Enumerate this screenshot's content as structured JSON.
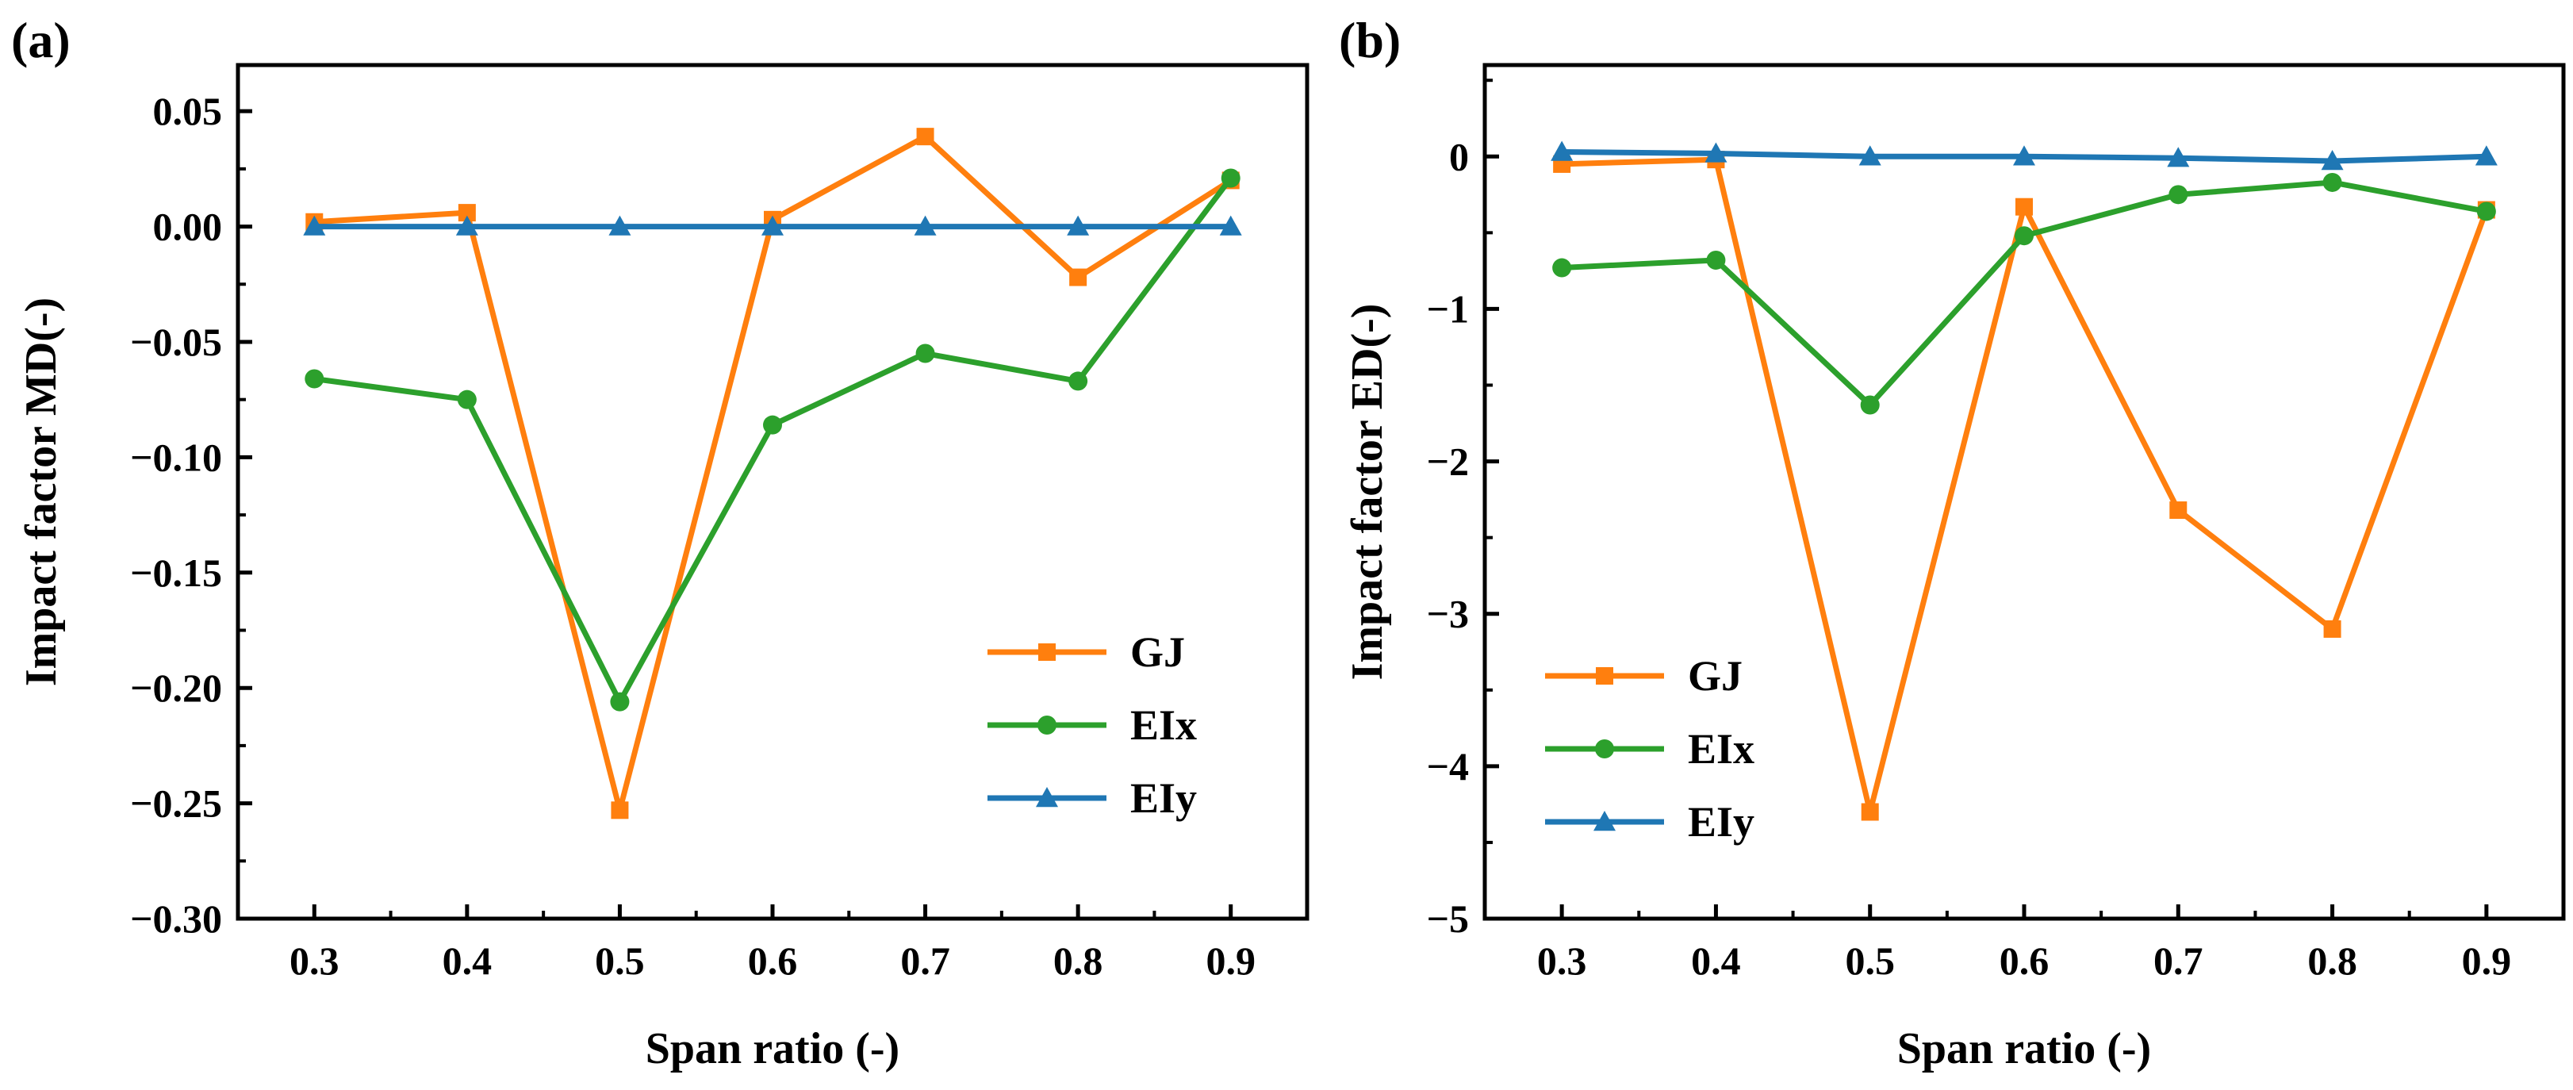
{
  "colors": {
    "GJ": "#ff7f0e",
    "EIx": "#2ca02c",
    "EIy": "#1f77b4"
  },
  "chart_data": [
    {
      "type": "line",
      "panel_label": "(a)",
      "xlabel": "Span ratio (-)",
      "ylabel": "Impact factor MD(-)",
      "x": [
        0.3,
        0.4,
        0.5,
        0.6,
        0.7,
        0.8,
        0.9
      ],
      "x_tick_labels": [
        "0.3",
        "0.4",
        "0.5",
        "0.6",
        "0.7",
        "0.8",
        "0.9"
      ],
      "xlim": [
        0.25,
        0.95
      ],
      "ylim": [
        -0.3,
        0.07
      ],
      "y_ticks": [
        0.05,
        0.0,
        -0.05,
        -0.1,
        -0.15,
        -0.2,
        -0.25,
        -0.3
      ],
      "y_tick_labels": [
        "0.05",
        "0.00",
        "−0.05",
        "−0.10",
        "−0.15",
        "−0.20",
        "−0.25",
        "−0.30"
      ],
      "legend": "lower-right",
      "series": [
        {
          "name": "GJ",
          "marker": "square",
          "values": [
            0.002,
            0.006,
            -0.253,
            0.003,
            0.039,
            -0.022,
            0.02
          ]
        },
        {
          "name": "EIx",
          "marker": "circle",
          "values": [
            -0.066,
            -0.075,
            -0.206,
            -0.086,
            -0.055,
            -0.067,
            0.021
          ]
        },
        {
          "name": "EIy",
          "marker": "triangle",
          "values": [
            0.0,
            0.0,
            0.0,
            0.0,
            0.0,
            0.0,
            0.0
          ]
        }
      ]
    },
    {
      "type": "line",
      "panel_label": "(b)",
      "xlabel": "Span ratio (-)",
      "ylabel": "Impact factor ED(-)",
      "x": [
        0.3,
        0.4,
        0.5,
        0.6,
        0.7,
        0.8,
        0.9
      ],
      "x_tick_labels": [
        "0.3",
        "0.4",
        "0.5",
        "0.6",
        "0.7",
        "0.8",
        "0.9"
      ],
      "xlim": [
        0.25,
        0.95
      ],
      "ylim": [
        -5,
        0.6
      ],
      "y_ticks": [
        0,
        -1,
        -2,
        -3,
        -4,
        -5
      ],
      "y_tick_labels": [
        "0",
        "−1",
        "−2",
        "−3",
        "−4",
        "−5"
      ],
      "legend": "lower-left",
      "series": [
        {
          "name": "GJ",
          "marker": "square",
          "values": [
            -0.05,
            -0.02,
            -4.3,
            -0.33,
            -2.32,
            -3.1,
            -0.35
          ]
        },
        {
          "name": "EIx",
          "marker": "circle",
          "values": [
            -0.73,
            -0.68,
            -1.63,
            -0.52,
            -0.25,
            -0.17,
            -0.36
          ]
        },
        {
          "name": "EIy",
          "marker": "triangle",
          "values": [
            0.03,
            0.02,
            0.0,
            0.0,
            -0.01,
            -0.03,
            0.0
          ]
        }
      ]
    }
  ]
}
